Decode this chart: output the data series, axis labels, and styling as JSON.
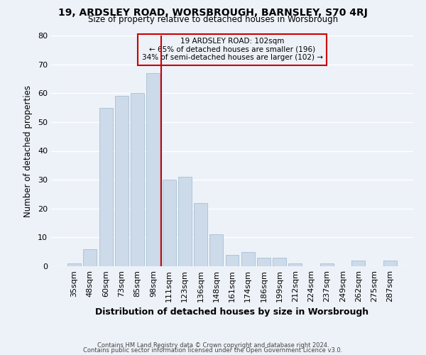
{
  "title1": "19, ARDSLEY ROAD, WORSBROUGH, BARNSLEY, S70 4RJ",
  "title2": "Size of property relative to detached houses in Worsbrough",
  "xlabel": "Distribution of detached houses by size in Worsbrough",
  "ylabel": "Number of detached properties",
  "categories": [
    "35sqm",
    "48sqm",
    "60sqm",
    "73sqm",
    "85sqm",
    "98sqm",
    "111sqm",
    "123sqm",
    "136sqm",
    "148sqm",
    "161sqm",
    "174sqm",
    "186sqm",
    "199sqm",
    "212sqm",
    "224sqm",
    "237sqm",
    "249sqm",
    "262sqm",
    "275sqm",
    "287sqm"
  ],
  "values": [
    1,
    6,
    55,
    59,
    60,
    67,
    30,
    31,
    22,
    11,
    4,
    5,
    3,
    3,
    1,
    0,
    1,
    0,
    2,
    0,
    2
  ],
  "bar_color": "#ccdaea",
  "bar_edge_color": "#a8bfd4",
  "vline_x": 5.5,
  "vline_color": "#cc0000",
  "annotation_line1": "19 ARDSLEY ROAD: 102sqm",
  "annotation_line2": "← 65% of detached houses are smaller (196)",
  "annotation_line3": "34% of semi-detached houses are larger (102) →",
  "annotation_box_color": "#cc0000",
  "ylim": [
    0,
    80
  ],
  "yticks": [
    0,
    10,
    20,
    30,
    40,
    50,
    60,
    70,
    80
  ],
  "footer1": "Contains HM Land Registry data © Crown copyright and database right 2024.",
  "footer2": "Contains public sector information licensed under the Open Government Licence v3.0.",
  "bg_color": "#edf2f8",
  "grid_color": "#ffffff"
}
